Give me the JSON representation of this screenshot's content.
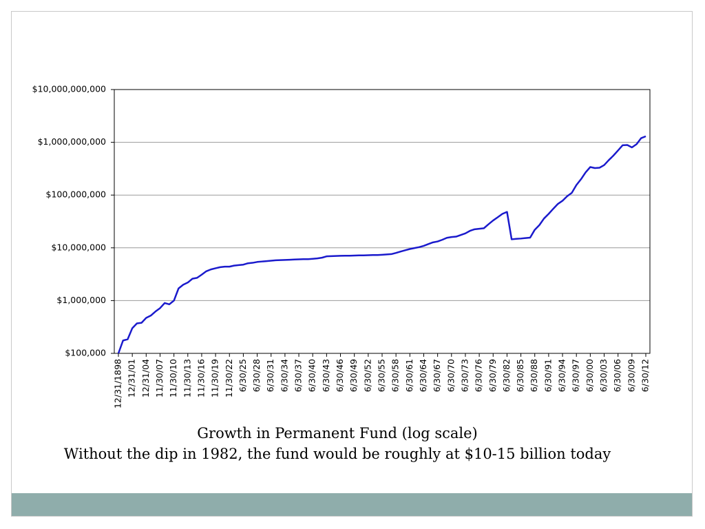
{
  "chart_data": {
    "type": "line",
    "title": "Growth in Permanent Fund (log scale)",
    "subtitle": "Without the dip in 1982, the fund would be roughly at $10-15 billion today",
    "categories": [
      "12/31/1898",
      null,
      null,
      "12/31/01",
      null,
      null,
      "12/31/04",
      null,
      null,
      "11/30/07",
      null,
      null,
      "11/30/10",
      null,
      null,
      "11/30/13",
      null,
      null,
      "11/30/16",
      null,
      null,
      "11/30/19",
      null,
      null,
      "11/30/22",
      null,
      null,
      "6/30/25",
      null,
      null,
      "6/30/28",
      null,
      null,
      "6/30/31",
      null,
      null,
      "6/30/34",
      null,
      null,
      "6/30/37",
      null,
      null,
      "6/30/40",
      null,
      null,
      "6/30/43",
      null,
      null,
      "6/30/46",
      null,
      null,
      "6/30/49",
      null,
      null,
      "6/30/52",
      null,
      null,
      "6/30/55",
      null,
      null,
      "6/30/58",
      null,
      null,
      "6/30/61",
      null,
      null,
      "6/30/64",
      null,
      null,
      "6/30/67",
      null,
      null,
      "6/30/70",
      null,
      null,
      "6/30/73",
      null,
      null,
      "6/30/76",
      null,
      null,
      "6/30/79",
      null,
      null,
      "6/30/82",
      null,
      null,
      "6/30/85",
      null,
      null,
      "6/30/88",
      null,
      null,
      "6/30/91",
      null,
      null,
      "6/30/94",
      null,
      null,
      "6/30/97",
      null,
      null,
      "6/30/00",
      null,
      null,
      "6/30/03",
      null,
      null,
      "6/30/06",
      null,
      null,
      "6/30/09",
      null,
      null,
      "6/30/12"
    ],
    "series": [
      {
        "name": "Permanent Fund",
        "color": "#1a1acc",
        "values": [
          100000,
          175000,
          185000,
          300000,
          370000,
          380000,
          470000,
          520000,
          620000,
          720000,
          900000,
          850000,
          1000000,
          1700000,
          2000000,
          2200000,
          2600000,
          2700000,
          3100000,
          3600000,
          3900000,
          4100000,
          4300000,
          4400000,
          4400000,
          4600000,
          4700000,
          4800000,
          5100000,
          5200000,
          5400000,
          5500000,
          5600000,
          5700000,
          5800000,
          5850000,
          5900000,
          5950000,
          6000000,
          6050000,
          6100000,
          6100000,
          6200000,
          6300000,
          6500000,
          6900000,
          6950000,
          7000000,
          7050000,
          7100000,
          7100000,
          7150000,
          7200000,
          7200000,
          7250000,
          7300000,
          7300000,
          7400000,
          7500000,
          7600000,
          8000000,
          8500000,
          9000000,
          9500000,
          9900000,
          10300000,
          10900000,
          11800000,
          12700000,
          13200000,
          14200000,
          15500000,
          16000000,
          16300000,
          17500000,
          18800000,
          21000000,
          22500000,
          23000000,
          23500000,
          28000000,
          33000000,
          38000000,
          44000000,
          48000000,
          14500000,
          14800000,
          15000000,
          15300000,
          15600000,
          22000000,
          27000000,
          36000000,
          44000000,
          55000000,
          68000000,
          78000000,
          95000000,
          110000000,
          155000000,
          200000000,
          270000000,
          340000000,
          325000000,
          330000000,
          370000000,
          460000000,
          560000000,
          700000000,
          880000000,
          890000000,
          800000000,
          920000000,
          1200000000,
          1300000000
        ]
      }
    ],
    "log_scale": true,
    "grid": true,
    "ylim": [
      100000,
      10000000000
    ],
    "yticks": [
      {
        "value": 100000,
        "label": "$100,000"
      },
      {
        "value": 1000000,
        "label": "$1,000,000"
      },
      {
        "value": 10000000,
        "label": "$10,000,000"
      },
      {
        "value": 100000000,
        "label": "$100,000,000"
      },
      {
        "value": 1000000000,
        "label": "$1,000,000,000"
      },
      {
        "value": 10000000000,
        "label": "$10,000,000,000"
      }
    ]
  }
}
